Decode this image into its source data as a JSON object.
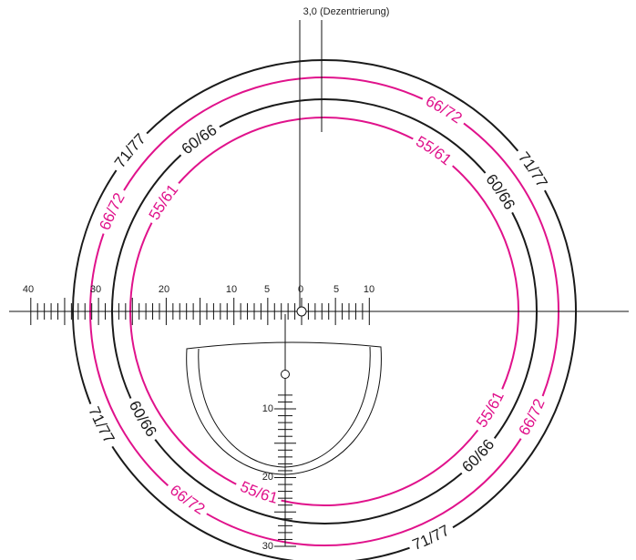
{
  "colors": {
    "black": "#1a1a1a",
    "magenta": "#e0128b"
  },
  "decentration_label": "3,0 (Dezentrierung)",
  "ruler_labels": [
    "40",
    "30",
    "20",
    "10",
    "5",
    "0",
    "5",
    "10"
  ],
  "vertical_scale_labels": [
    "10",
    "20",
    "30"
  ],
  "rings": [
    {
      "text": "71/77",
      "color": "black"
    },
    {
      "text": "66/72",
      "color": "magenta"
    },
    {
      "text": "60/66",
      "color": "black"
    },
    {
      "text": "55/61",
      "color": "magenta"
    }
  ]
}
